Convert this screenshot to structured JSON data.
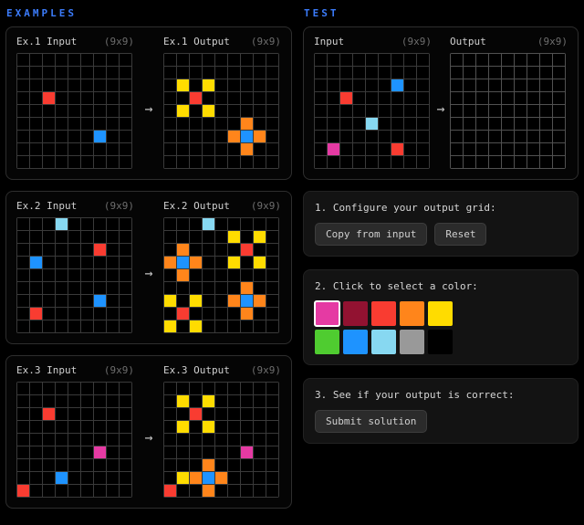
{
  "ui": {
    "arrow": "→",
    "accent_color": "#3B7BFA"
  },
  "palette": {
    "0": "#000000",
    "1": "#1E93FF",
    "2": "#F93C31",
    "3": "#4FCC30",
    "4": "#FFDC00",
    "5": "#999999",
    "6": "#E53AA3",
    "7": "#FF851B",
    "8": "#87D8F1",
    "9": "#921231"
  },
  "color_names": {
    "0": "black",
    "1": "blue",
    "2": "red",
    "3": "green",
    "4": "yellow",
    "5": "grey",
    "6": "magenta",
    "7": "orange",
    "8": "azure",
    "9": "maroon"
  },
  "examples": {
    "title": "EXAMPLES",
    "items": [
      {
        "input_label": "Ex.1 Input",
        "input_size": "(9x9)",
        "output_label": "Ex.1 Output",
        "output_size": "(9x9)",
        "input_grid": [
          [
            0,
            0,
            0,
            0,
            0,
            0,
            0,
            0,
            0
          ],
          [
            0,
            0,
            0,
            0,
            0,
            0,
            0,
            0,
            0
          ],
          [
            0,
            0,
            0,
            0,
            0,
            0,
            0,
            0,
            0
          ],
          [
            0,
            0,
            2,
            0,
            0,
            0,
            0,
            0,
            0
          ],
          [
            0,
            0,
            0,
            0,
            0,
            0,
            0,
            0,
            0
          ],
          [
            0,
            0,
            0,
            0,
            0,
            0,
            0,
            0,
            0
          ],
          [
            0,
            0,
            0,
            0,
            0,
            0,
            1,
            0,
            0
          ],
          [
            0,
            0,
            0,
            0,
            0,
            0,
            0,
            0,
            0
          ],
          [
            0,
            0,
            0,
            0,
            0,
            0,
            0,
            0,
            0
          ]
        ],
        "output_grid": [
          [
            0,
            0,
            0,
            0,
            0,
            0,
            0,
            0,
            0
          ],
          [
            0,
            0,
            0,
            0,
            0,
            0,
            0,
            0,
            0
          ],
          [
            0,
            4,
            0,
            4,
            0,
            0,
            0,
            0,
            0
          ],
          [
            0,
            0,
            2,
            0,
            0,
            0,
            0,
            0,
            0
          ],
          [
            0,
            4,
            0,
            4,
            0,
            0,
            0,
            0,
            0
          ],
          [
            0,
            0,
            0,
            0,
            0,
            0,
            7,
            0,
            0
          ],
          [
            0,
            0,
            0,
            0,
            0,
            7,
            1,
            7,
            0
          ],
          [
            0,
            0,
            0,
            0,
            0,
            0,
            7,
            0,
            0
          ],
          [
            0,
            0,
            0,
            0,
            0,
            0,
            0,
            0,
            0
          ]
        ]
      },
      {
        "input_label": "Ex.2 Input",
        "input_size": "(9x9)",
        "output_label": "Ex.2 Output",
        "output_size": "(9x9)",
        "input_grid": [
          [
            0,
            0,
            0,
            8,
            0,
            0,
            0,
            0,
            0
          ],
          [
            0,
            0,
            0,
            0,
            0,
            0,
            0,
            0,
            0
          ],
          [
            0,
            0,
            0,
            0,
            0,
            0,
            2,
            0,
            0
          ],
          [
            0,
            1,
            0,
            0,
            0,
            0,
            0,
            0,
            0
          ],
          [
            0,
            0,
            0,
            0,
            0,
            0,
            0,
            0,
            0
          ],
          [
            0,
            0,
            0,
            0,
            0,
            0,
            0,
            0,
            0
          ],
          [
            0,
            0,
            0,
            0,
            0,
            0,
            1,
            0,
            0
          ],
          [
            0,
            2,
            0,
            0,
            0,
            0,
            0,
            0,
            0
          ],
          [
            0,
            0,
            0,
            0,
            0,
            0,
            0,
            0,
            0
          ]
        ],
        "output_grid": [
          [
            0,
            0,
            0,
            8,
            0,
            0,
            0,
            0,
            0
          ],
          [
            0,
            0,
            0,
            0,
            0,
            4,
            0,
            4,
            0
          ],
          [
            0,
            7,
            0,
            0,
            0,
            0,
            2,
            0,
            0
          ],
          [
            7,
            1,
            7,
            0,
            0,
            4,
            0,
            4,
            0
          ],
          [
            0,
            7,
            0,
            0,
            0,
            0,
            0,
            0,
            0
          ],
          [
            0,
            0,
            0,
            0,
            0,
            0,
            7,
            0,
            0
          ],
          [
            4,
            0,
            4,
            0,
            0,
            7,
            1,
            7,
            0
          ],
          [
            0,
            2,
            0,
            0,
            0,
            0,
            7,
            0,
            0
          ],
          [
            4,
            0,
            4,
            0,
            0,
            0,
            0,
            0,
            0
          ]
        ]
      },
      {
        "input_label": "Ex.3 Input",
        "input_size": "(9x9)",
        "output_label": "Ex.3 Output",
        "output_size": "(9x9)",
        "input_grid": [
          [
            0,
            0,
            0,
            0,
            0,
            0,
            0,
            0,
            0
          ],
          [
            0,
            0,
            0,
            0,
            0,
            0,
            0,
            0,
            0
          ],
          [
            0,
            0,
            2,
            0,
            0,
            0,
            0,
            0,
            0
          ],
          [
            0,
            0,
            0,
            0,
            0,
            0,
            0,
            0,
            0
          ],
          [
            0,
            0,
            0,
            0,
            0,
            0,
            0,
            0,
            0
          ],
          [
            0,
            0,
            0,
            0,
            0,
            0,
            6,
            0,
            0
          ],
          [
            0,
            0,
            0,
            0,
            0,
            0,
            0,
            0,
            0
          ],
          [
            0,
            0,
            0,
            1,
            0,
            0,
            0,
            0,
            0
          ],
          [
            2,
            0,
            0,
            0,
            0,
            0,
            0,
            0,
            0
          ]
        ],
        "output_grid": [
          [
            0,
            0,
            0,
            0,
            0,
            0,
            0,
            0,
            0
          ],
          [
            0,
            4,
            0,
            4,
            0,
            0,
            0,
            0,
            0
          ],
          [
            0,
            0,
            2,
            0,
            0,
            0,
            0,
            0,
            0
          ],
          [
            0,
            4,
            0,
            4,
            0,
            0,
            0,
            0,
            0
          ],
          [
            0,
            0,
            0,
            0,
            0,
            0,
            0,
            0,
            0
          ],
          [
            0,
            0,
            0,
            0,
            0,
            0,
            6,
            0,
            0
          ],
          [
            0,
            0,
            0,
            7,
            0,
            0,
            0,
            0,
            0
          ],
          [
            0,
            4,
            7,
            1,
            7,
            0,
            0,
            0,
            0
          ],
          [
            2,
            0,
            0,
            7,
            0,
            0,
            0,
            0,
            0
          ]
        ]
      }
    ]
  },
  "test": {
    "title": "TEST",
    "input_label": "Input",
    "input_size": "(9x9)",
    "output_label": "Output",
    "output_size": "(9x9)",
    "input_grid": [
      [
        0,
        0,
        0,
        0,
        0,
        0,
        0,
        0,
        0
      ],
      [
        0,
        0,
        0,
        0,
        0,
        0,
        0,
        0,
        0
      ],
      [
        0,
        0,
        0,
        0,
        0,
        0,
        1,
        0,
        0
      ],
      [
        0,
        0,
        2,
        0,
        0,
        0,
        0,
        0,
        0
      ],
      [
        0,
        0,
        0,
        0,
        0,
        0,
        0,
        0,
        0
      ],
      [
        0,
        0,
        0,
        0,
        8,
        0,
        0,
        0,
        0
      ],
      [
        0,
        0,
        0,
        0,
        0,
        0,
        0,
        0,
        0
      ],
      [
        0,
        6,
        0,
        0,
        0,
        0,
        2,
        0,
        0
      ],
      [
        0,
        0,
        0,
        0,
        0,
        0,
        0,
        0,
        0
      ]
    ],
    "output_grid": [
      [
        0,
        0,
        0,
        0,
        0,
        0,
        0,
        0,
        0
      ],
      [
        0,
        0,
        0,
        0,
        0,
        0,
        0,
        0,
        0
      ],
      [
        0,
        0,
        0,
        0,
        0,
        0,
        0,
        0,
        0
      ],
      [
        0,
        0,
        0,
        0,
        0,
        0,
        0,
        0,
        0
      ],
      [
        0,
        0,
        0,
        0,
        0,
        0,
        0,
        0,
        0
      ],
      [
        0,
        0,
        0,
        0,
        0,
        0,
        0,
        0,
        0
      ],
      [
        0,
        0,
        0,
        0,
        0,
        0,
        0,
        0,
        0
      ],
      [
        0,
        0,
        0,
        0,
        0,
        0,
        0,
        0,
        0
      ],
      [
        0,
        0,
        0,
        0,
        0,
        0,
        0,
        0,
        0
      ]
    ]
  },
  "controls": {
    "step1_label": "1. Configure your output grid:",
    "copy_button": "Copy from input",
    "reset_button": "Reset",
    "step2_label": "2. Click to select a color:",
    "color_options": [
      6,
      9,
      2,
      7,
      4,
      3,
      1,
      8,
      5,
      0
    ],
    "selected_color": 6,
    "step3_label": "3. See if your output is correct:",
    "submit_button": "Submit solution"
  }
}
